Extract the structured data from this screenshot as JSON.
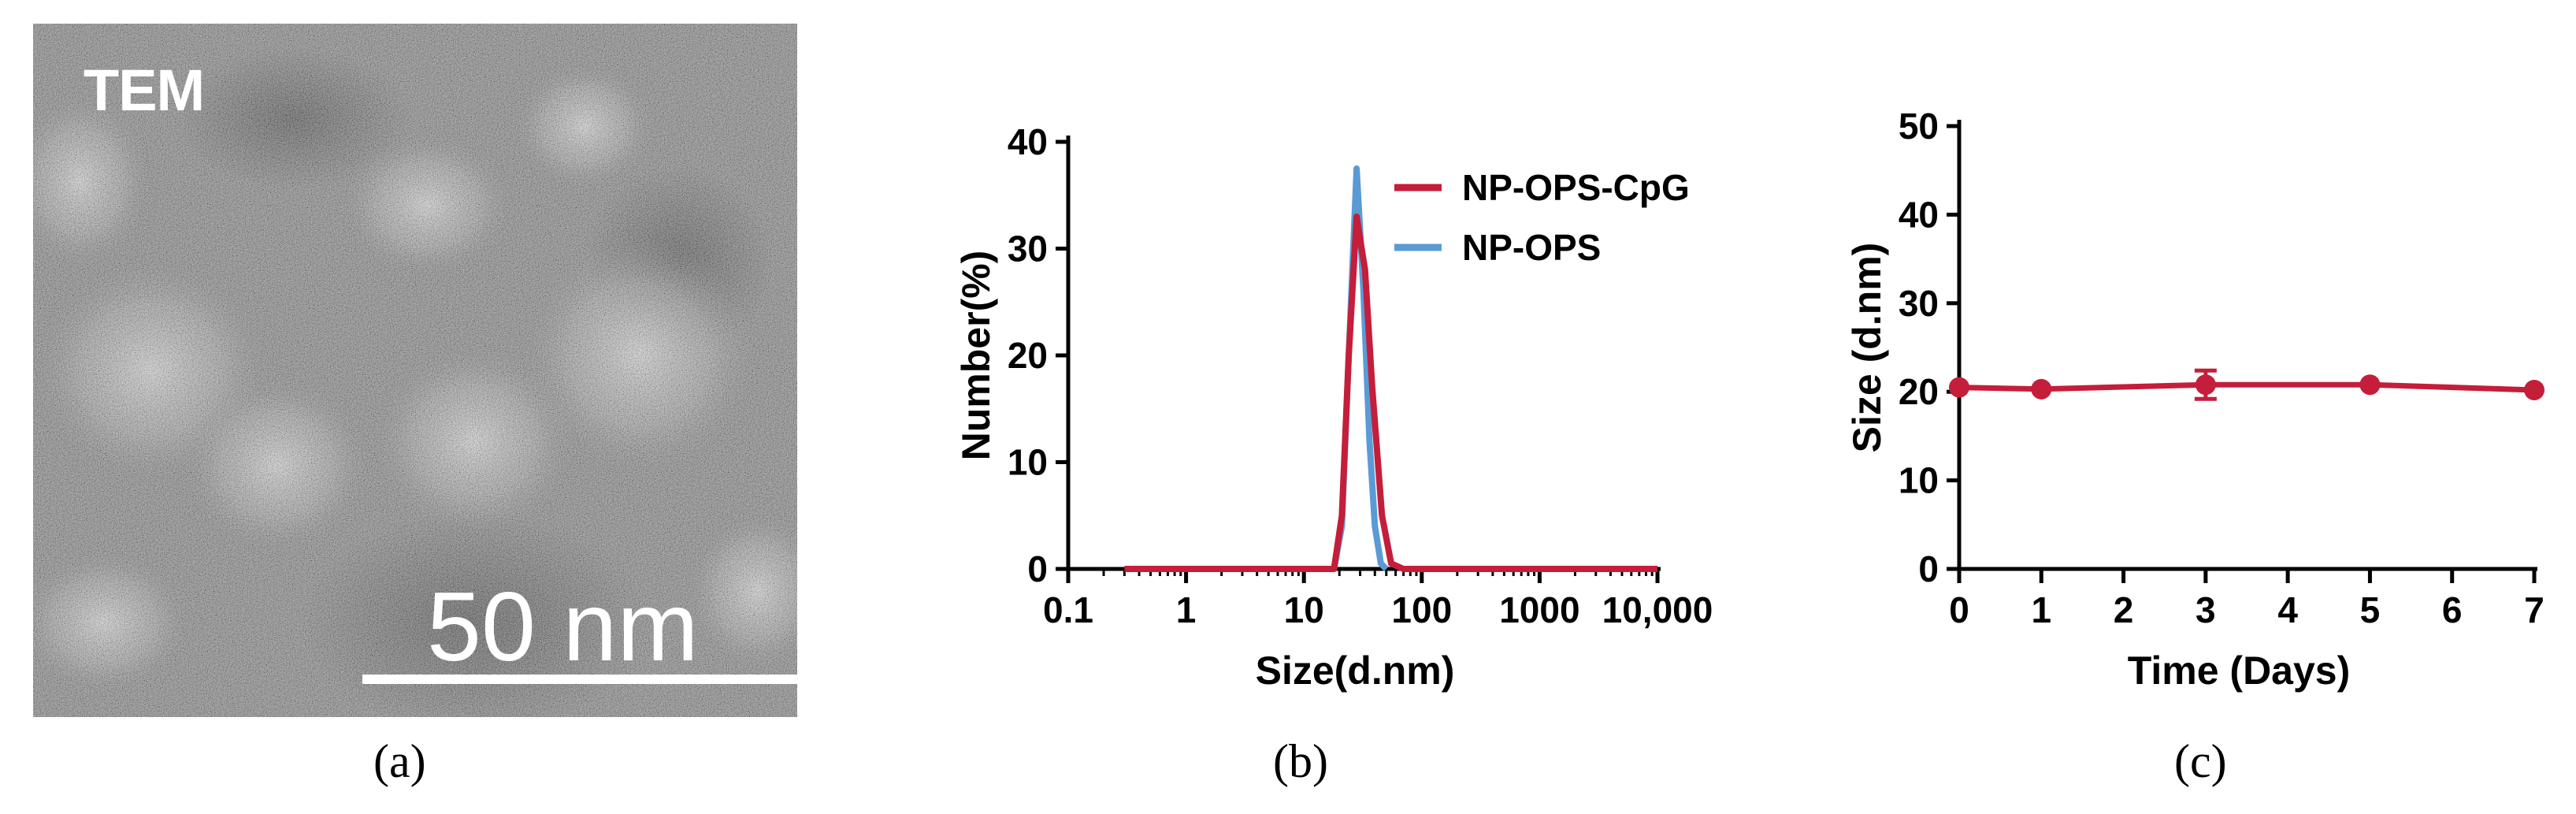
{
  "panel_a": {
    "label": "TEM",
    "scale_bar_label": "50 nm",
    "caption": "(a)"
  },
  "chart_data": [
    {
      "type": "line",
      "panel": "b",
      "caption": "(b)",
      "xlabel": "Size(d.nm)",
      "ylabel": "Number(%)",
      "xscale": "log",
      "xlim": [
        0.1,
        10000
      ],
      "ylim": [
        0,
        40
      ],
      "xticks": [
        0.1,
        1,
        10,
        100,
        1000,
        10000
      ],
      "xtick_labels": [
        "0.1",
        "1",
        "10",
        "100",
        "1000",
        "10,000"
      ],
      "yticks": [
        0,
        10,
        20,
        30,
        40
      ],
      "ytick_labels": [
        "0",
        "10",
        "20",
        "30",
        "40"
      ],
      "legend_position": "top-right",
      "series": [
        {
          "name": "NP-OPS-CpG",
          "color": "#c41e3a",
          "points": [
            [
              0.3,
              0
            ],
            [
              10,
              0
            ],
            [
              18,
              0
            ],
            [
              21,
              5
            ],
            [
              24,
              20
            ],
            [
              28,
              33
            ],
            [
              33,
              28
            ],
            [
              38,
              17
            ],
            [
              46,
              5
            ],
            [
              55,
              0.5
            ],
            [
              70,
              0
            ],
            [
              1000,
              0
            ],
            [
              10000,
              0
            ]
          ]
        },
        {
          "name": "NP-OPS",
          "color": "#5b9bd5",
          "points": [
            [
              18,
              0
            ],
            [
              21,
              4
            ],
            [
              24,
              20
            ],
            [
              28,
              37.5
            ],
            [
              32,
              26
            ],
            [
              36,
              12
            ],
            [
              40,
              4
            ],
            [
              45,
              0.5
            ],
            [
              50,
              0
            ]
          ]
        }
      ]
    },
    {
      "type": "line",
      "panel": "c",
      "caption": "(c)",
      "xlabel": "Time (Days)",
      "ylabel": "Size (d.nm)",
      "xlim": [
        0,
        7
      ],
      "ylim": [
        0,
        50
      ],
      "xticks": [
        0,
        1,
        2,
        3,
        4,
        5,
        6,
        7
      ],
      "xtick_labels": [
        "0",
        "1",
        "2",
        "3",
        "4",
        "5",
        "6",
        "7"
      ],
      "yticks": [
        0,
        10,
        20,
        30,
        40,
        50
      ],
      "ytick_labels": [
        "0",
        "10",
        "20",
        "30",
        "40",
        "50"
      ],
      "series": [
        {
          "name": "Size",
          "color": "#c41e3a",
          "x": [
            0,
            1,
            3,
            5,
            7
          ],
          "y": [
            20.5,
            20.3,
            20.8,
            20.8,
            20.2
          ],
          "error": [
            0.4,
            0.3,
            1.6,
            0.4,
            0.3
          ]
        }
      ]
    }
  ]
}
